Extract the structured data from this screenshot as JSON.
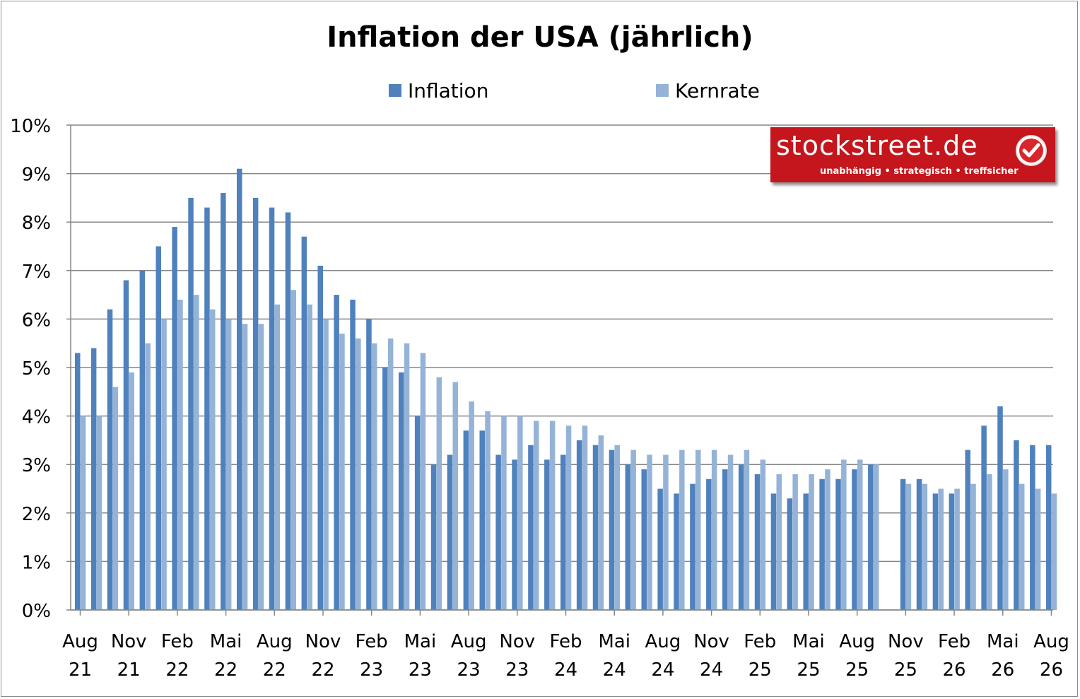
{
  "chart_data": {
    "type": "bar",
    "title": "Inflation der USA (jährlich)",
    "ylim": [
      0,
      10
    ],
    "yticks": [
      0,
      1,
      2,
      3,
      4,
      5,
      6,
      7,
      8,
      9,
      10
    ],
    "ytick_labels": [
      "0%",
      "1%",
      "2%",
      "3%",
      "4%",
      "5%",
      "6%",
      "7%",
      "8%",
      "9%",
      "10%"
    ],
    "grid": "horizontal",
    "legend": "top-center",
    "categories": [
      "Aug 21",
      "Sep 21",
      "Okt 21",
      "Nov 21",
      "Dez 21",
      "Jan 22",
      "Feb 22",
      "Mrz 22",
      "Apr 22",
      "Mai 22",
      "Jun 22",
      "Jul 22",
      "Aug 22",
      "Sep 22",
      "Okt 22",
      "Nov 22",
      "Dez 22",
      "Jan 23",
      "Feb 23",
      "Mrz 23",
      "Apr 23",
      "Mai 23",
      "Jun 23",
      "Jul 23",
      "Aug 23",
      "Sep 23",
      "Okt 23",
      "Nov 23",
      "Dez 23",
      "Jan 24",
      "Feb 24",
      "Mrz 24",
      "Apr 24",
      "Mai 24",
      "Jun 24",
      "Jul 24",
      "Aug 24",
      "Sep 24",
      "Okt 24",
      "Nov 24",
      "Dez 24",
      "Jan 25",
      "Feb 25",
      "Mrz 25",
      "Apr 25",
      "Mai 25",
      "Jun 25",
      "Jul 25",
      "Aug 25",
      "Sep 25",
      "Okt 25",
      "Nov 25",
      "Dez 25",
      "Jan 26",
      "Feb 26",
      "Mrz 26",
      "Apr 26",
      "Mai 26",
      "Jun 26",
      "Jul 26",
      "Aug 26"
    ],
    "xtick_labels": [
      {
        "index": 0,
        "line1": "Aug",
        "line2": "21"
      },
      {
        "index": 3,
        "line1": "Nov",
        "line2": "21"
      },
      {
        "index": 6,
        "line1": "Feb",
        "line2": "22"
      },
      {
        "index": 9,
        "line1": "Mai",
        "line2": "22"
      },
      {
        "index": 12,
        "line1": "Aug",
        "line2": "22"
      },
      {
        "index": 15,
        "line1": "Nov",
        "line2": "22"
      },
      {
        "index": 18,
        "line1": "Feb",
        "line2": "23"
      },
      {
        "index": 21,
        "line1": "Mai",
        "line2": "23"
      },
      {
        "index": 24,
        "line1": "Aug",
        "line2": "23"
      },
      {
        "index": 27,
        "line1": "Nov",
        "line2": "23"
      },
      {
        "index": 30,
        "line1": "Feb",
        "line2": "24"
      },
      {
        "index": 33,
        "line1": "Mai",
        "line2": "24"
      },
      {
        "index": 36,
        "line1": "Aug",
        "line2": "24"
      },
      {
        "index": 39,
        "line1": "Nov",
        "line2": "24"
      },
      {
        "index": 42,
        "line1": "Feb",
        "line2": "25"
      },
      {
        "index": 45,
        "line1": "Mai",
        "line2": "25"
      },
      {
        "index": 48,
        "line1": "Aug",
        "line2": "25"
      },
      {
        "index": 51,
        "line1": "Nov",
        "line2": "25"
      },
      {
        "index": 54,
        "line1": "Feb",
        "line2": "26"
      },
      {
        "index": 57,
        "line1": "Mai",
        "line2": "26"
      },
      {
        "index": 60,
        "line1": "Aug",
        "line2": "26"
      }
    ],
    "series": [
      {
        "name": "Inflation",
        "color": "#4f81bd",
        "values": [
          5.3,
          5.4,
          6.2,
          6.8,
          7.0,
          7.5,
          7.9,
          8.5,
          8.3,
          8.6,
          9.1,
          8.5,
          8.3,
          8.2,
          7.7,
          7.1,
          6.5,
          6.4,
          6.0,
          5.0,
          4.9,
          4.0,
          3.0,
          3.2,
          3.7,
          3.7,
          3.2,
          3.1,
          3.4,
          3.1,
          3.2,
          3.5,
          3.4,
          3.3,
          3.0,
          2.9,
          2.5,
          2.4,
          2.6,
          2.7,
          2.9,
          3.0,
          2.8,
          2.4,
          2.3,
          2.4,
          2.7,
          2.7,
          2.9,
          3.0,
          null,
          2.7,
          2.7,
          2.4,
          2.4,
          3.3,
          3.8,
          4.2,
          3.5,
          3.4,
          3.4
        ]
      },
      {
        "name": "Kernrate",
        "color": "#95b3d7",
        "values": [
          4.0,
          4.0,
          4.6,
          4.9,
          5.5,
          6.0,
          6.4,
          6.5,
          6.2,
          6.0,
          5.9,
          5.9,
          6.3,
          6.6,
          6.3,
          6.0,
          5.7,
          5.6,
          5.5,
          5.6,
          5.5,
          5.3,
          4.8,
          4.7,
          4.3,
          4.1,
          4.0,
          4.0,
          3.9,
          3.9,
          3.8,
          3.8,
          3.6,
          3.4,
          3.3,
          3.2,
          3.2,
          3.3,
          3.3,
          3.3,
          3.2,
          3.3,
          3.1,
          2.8,
          2.8,
          2.8,
          2.9,
          3.1,
          3.1,
          3.0,
          null,
          2.6,
          2.6,
          2.5,
          2.5,
          2.6,
          2.8,
          2.9,
          2.6,
          2.5,
          2.4
        ]
      }
    ]
  },
  "logo": {
    "name": "stockstreet.de",
    "slogan": "unabhängig • strategisch • treffsicher",
    "color": "#c4161c"
  }
}
